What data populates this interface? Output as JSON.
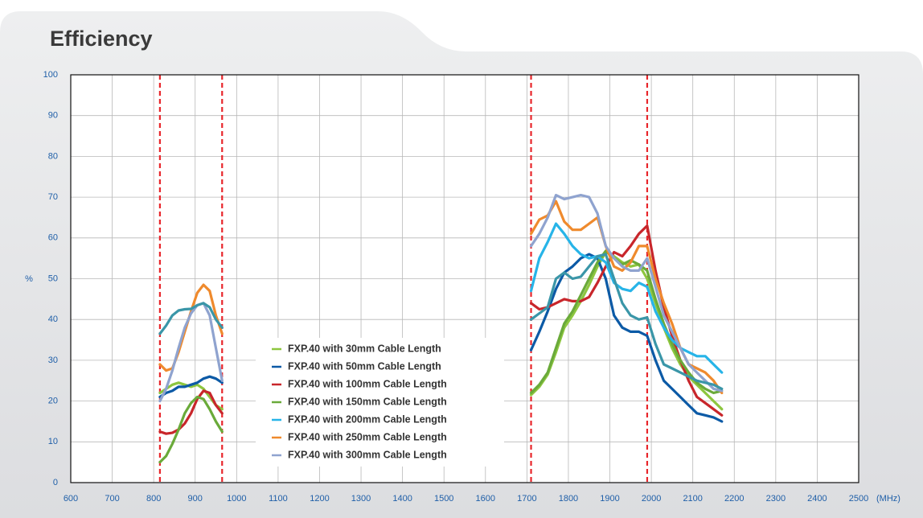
{
  "chart_data": {
    "type": "line",
    "title": "Efficiency",
    "ylabel": "%",
    "xlabel": "(MHz)",
    "xlim": [
      600,
      2500
    ],
    "ylim": [
      0,
      100
    ],
    "xticks": [
      600,
      700,
      800,
      900,
      1000,
      1100,
      1200,
      1300,
      1400,
      1500,
      1600,
      1700,
      1800,
      1900,
      2000,
      2100,
      2200,
      2300,
      2400,
      2500
    ],
    "yticks": [
      0,
      10,
      20,
      30,
      40,
      50,
      60,
      70,
      80,
      90,
      100
    ],
    "grid": true,
    "vlines": [
      815,
      965,
      1710,
      1990
    ],
    "vline_color": "#e8262b",
    "x": [
      815,
      830,
      845,
      860,
      875,
      890,
      905,
      920,
      935,
      950,
      965,
      null,
      1710,
      1730,
      1750,
      1770,
      1790,
      1810,
      1830,
      1850,
      1870,
      1890,
      1910,
      1930,
      1950,
      1970,
      1990,
      2010,
      2030,
      2050,
      2070,
      2090,
      2110,
      2130,
      2150,
      2170
    ],
    "series": [
      {
        "name": "FXP.40 with 30mm Cable Length",
        "color": "#8dc63f",
        "values": [
          22,
          23,
          24,
          24.5,
          24,
          23.5,
          24,
          23,
          21,
          19,
          18,
          null,
          21.5,
          23.5,
          26.5,
          32,
          38,
          41,
          44.5,
          48.5,
          53,
          56.5,
          55.5,
          54,
          53,
          53.5,
          50,
          44,
          38,
          33,
          29,
          26,
          24,
          22,
          20,
          18
        ]
      },
      {
        "name": "FXP.40 with 50mm Cable Length",
        "color": "#0c5aa6",
        "values": [
          21,
          22,
          22.5,
          23.5,
          23.5,
          24,
          24.5,
          25.5,
          26,
          25.5,
          24.5,
          null,
          32.5,
          37,
          42,
          47.5,
          51.5,
          53,
          55,
          56,
          55,
          50,
          41,
          38,
          37,
          37,
          36,
          30,
          25,
          23,
          21,
          19,
          17,
          16.5,
          16,
          15
        ]
      },
      {
        "name": "FXP.40 with 100mm Cable Length",
        "color": "#c8262b",
        "values": [
          12.5,
          12,
          12.2,
          13,
          14.5,
          17,
          20.5,
          22.5,
          22,
          19,
          17,
          null,
          44,
          42.5,
          43,
          44,
          45,
          44.5,
          44.5,
          45.5,
          49,
          53,
          56.5,
          55.5,
          58,
          61,
          63,
          52,
          43,
          36,
          30,
          25,
          21,
          19.5,
          18,
          16.5
        ]
      },
      {
        "name": "FXP.40 with 150mm Cable Length",
        "color": "#6aaa3a",
        "values": [
          5,
          6.5,
          9.5,
          13,
          17,
          19.5,
          21,
          20.5,
          18,
          15,
          12.5,
          null,
          22,
          24,
          27,
          33,
          39,
          42,
          46,
          50,
          54,
          56.8,
          55,
          53.5,
          54.5,
          53.5,
          52,
          45,
          39,
          34,
          30,
          27,
          24.5,
          23,
          22,
          22.5
        ]
      },
      {
        "name": "FXP.40 with 200mm Cable Length",
        "color": "#27b4e8",
        "values": [
          null,
          null,
          null,
          null,
          null,
          null,
          null,
          null,
          null,
          null,
          null,
          null,
          47,
          55,
          59,
          63.5,
          61,
          58,
          56,
          55,
          55.5,
          54,
          49,
          47.5,
          47,
          49,
          48,
          42,
          38,
          35,
          33,
          32,
          31,
          31,
          29,
          27
        ]
      },
      {
        "name": "FXP.40 with 250mm Cable Length",
        "color": "#ef8a2d",
        "values": [
          29,
          27.5,
          28,
          32,
          37,
          42,
          46.5,
          48.5,
          47,
          41,
          36.5,
          null,
          61,
          64.5,
          65.5,
          69,
          64,
          62,
          62,
          63.5,
          65,
          58,
          53,
          52,
          54,
          58,
          58,
          50,
          44,
          39,
          33,
          29,
          28,
          27,
          25,
          22
        ]
      },
      {
        "name": "FXP.40 with 300mm Cable Length",
        "color": "#8fa3cf",
        "values": [
          20,
          23,
          27.5,
          33,
          38,
          41.5,
          43.5,
          44,
          41,
          33,
          25,
          null,
          58,
          61,
          65,
          70.5,
          69.5,
          70,
          70.5,
          70,
          66,
          58,
          55,
          53,
          52,
          52,
          55,
          48,
          41,
          37,
          33,
          29,
          27,
          25,
          23,
          22.5
        ]
      },
      {
        "color": "#3a96a8",
        "values": [
          36.5,
          38.5,
          41,
          42.2,
          42.5,
          42.6,
          43.5,
          44,
          43,
          40,
          38,
          null,
          40,
          41.5,
          43,
          50,
          51.5,
          50,
          50.5,
          53,
          55.5,
          56,
          50,
          44,
          41,
          40,
          40.5,
          34,
          29,
          28,
          27,
          26,
          25,
          24.5,
          24,
          23
        ]
      }
    ]
  }
}
